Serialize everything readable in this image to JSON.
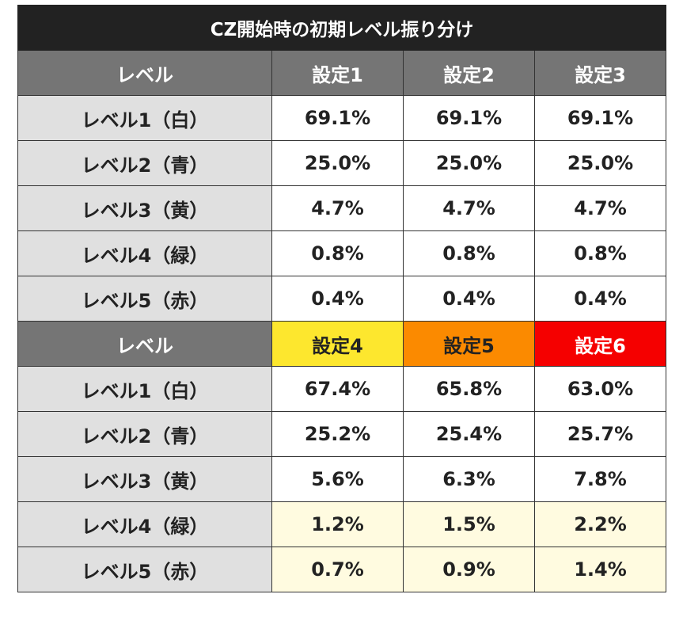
{
  "title": "CZ開始時の初期レベル振り分け",
  "colors": {
    "setting4": "#fde72e",
    "setting5": "#fb8a00",
    "setting6": "#f50000",
    "highlight": "#fffbe0"
  },
  "section1": {
    "headers": [
      "レベル",
      "設定1",
      "設定2",
      "設定3"
    ],
    "rows": [
      {
        "label": "レベル1（白）",
        "values": [
          "69.1%",
          "69.1%",
          "69.1%"
        ]
      },
      {
        "label": "レベル2（青）",
        "values": [
          "25.0%",
          "25.0%",
          "25.0%"
        ]
      },
      {
        "label": "レベル3（黄）",
        "values": [
          "4.7%",
          "4.7%",
          "4.7%"
        ]
      },
      {
        "label": "レベル4（緑）",
        "values": [
          "0.8%",
          "0.8%",
          "0.8%"
        ]
      },
      {
        "label": "レベル5（赤）",
        "values": [
          "0.4%",
          "0.4%",
          "0.4%"
        ]
      }
    ]
  },
  "section2": {
    "headers": [
      "レベル",
      "設定4",
      "設定5",
      "設定6"
    ],
    "rows": [
      {
        "label": "レベル1（白）",
        "values": [
          "67.4%",
          "65.8%",
          "63.0%"
        ]
      },
      {
        "label": "レベル2（青）",
        "values": [
          "25.2%",
          "25.4%",
          "25.7%"
        ]
      },
      {
        "label": "レベル3（黄）",
        "values": [
          "5.6%",
          "6.3%",
          "7.8%"
        ]
      },
      {
        "label": "レベル4（緑）",
        "values": [
          "1.2%",
          "1.5%",
          "2.2%"
        ]
      },
      {
        "label": "レベル5（赤）",
        "values": [
          "0.7%",
          "0.9%",
          "1.4%"
        ]
      }
    ]
  }
}
